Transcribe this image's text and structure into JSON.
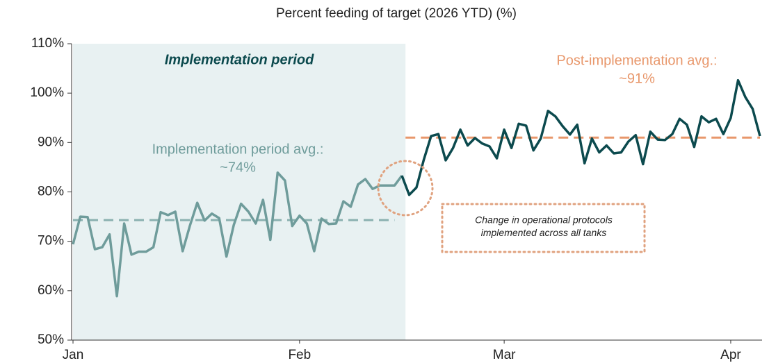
{
  "chart_data": {
    "type": "line",
    "title": "Percent feeding of target (2026 YTD) (%)",
    "x": [
      0,
      1,
      2,
      3,
      4,
      5,
      6,
      7,
      8,
      9,
      10,
      11,
      12,
      13,
      14,
      15,
      16,
      17,
      18,
      19,
      20,
      21,
      22,
      23,
      24,
      25,
      26,
      27,
      28,
      29,
      30,
      31,
      32,
      33,
      34,
      35,
      36,
      37,
      38,
      39,
      40,
      41,
      42,
      43,
      44,
      45,
      46,
      47,
      48,
      49,
      50,
      51,
      52,
      53,
      54,
      55,
      56,
      57,
      58,
      59,
      60,
      61,
      62,
      63,
      64,
      65,
      66,
      67,
      68,
      69,
      70,
      71,
      72,
      73,
      74,
      75,
      76,
      77,
      78,
      79,
      80,
      81,
      82,
      83,
      84,
      85,
      86,
      87,
      88,
      89,
      90,
      91,
      92,
      93,
      94
    ],
    "series": [
      {
        "name": "Implementation period",
        "color": "#6f9c9b",
        "values": [
          69.4,
          75,
          74.9,
          68.4,
          68.8,
          71.4,
          58.9,
          73.6,
          67.3,
          67.9,
          67.9,
          68.8,
          75.9,
          75.3,
          76,
          68,
          73.2,
          77.8,
          74.2,
          75.6,
          74.7,
          66.9,
          73.3,
          77.6,
          76,
          73.6,
          78.4,
          70.3,
          83.9,
          82.3,
          73.1,
          75.2,
          73.6,
          68,
          74.6,
          73.5,
          73.6,
          78.1,
          77,
          81.5,
          82.6,
          80.6,
          81.3,
          81.3,
          81.3,
          83.3,
          null,
          null,
          null,
          null,
          null,
          null,
          null,
          null,
          null,
          null,
          null,
          null,
          null,
          null,
          null,
          null,
          null,
          null,
          null,
          null,
          null,
          null,
          null,
          null,
          null,
          null,
          null,
          null,
          null,
          null,
          null,
          null,
          null,
          null,
          null,
          null,
          null,
          null,
          null,
          null,
          null,
          null,
          null,
          null,
          null,
          null,
          null,
          null,
          null
        ]
      },
      {
        "name": "Post-implementation",
        "color": "#0c4a4e",
        "values": [
          null,
          null,
          null,
          null,
          null,
          null,
          null,
          null,
          null,
          null,
          null,
          null,
          null,
          null,
          null,
          null,
          null,
          null,
          null,
          null,
          null,
          null,
          null,
          null,
          null,
          null,
          null,
          null,
          null,
          null,
          null,
          null,
          null,
          null,
          null,
          null,
          null,
          null,
          null,
          null,
          null,
          null,
          null,
          null,
          null,
          83.3,
          79.4,
          80.9,
          86.5,
          91.3,
          91.7,
          86.4,
          88.9,
          92.6,
          89.4,
          90.9,
          89.8,
          89.2,
          86.8,
          92.6,
          88.9,
          93.8,
          93.4,
          88.4,
          90.8,
          96.4,
          95.3,
          93.3,
          91.6,
          93.6,
          85.8,
          90.8,
          88,
          89.4,
          87.8,
          88,
          90.2,
          91.5,
          85.6,
          92.2,
          90.6,
          90.5,
          91.7,
          94.8,
          93.6,
          89.1,
          95.3,
          94.1,
          94.8,
          91.7,
          95,
          102.6,
          99.2,
          96.8,
          91.3
        ]
      }
    ],
    "reference_lines": [
      {
        "value": 74.3,
        "x": [
          0,
          44
        ],
        "color": "#8ab1b0"
      },
      {
        "value": 91,
        "x": [
          45.5,
          94
        ],
        "color": "#e8976b"
      }
    ],
    "shaded_region": {
      "x": [
        0,
        45.5
      ],
      "color": "#e8f1f2",
      "label": "Implementation period"
    },
    "annotations": [
      {
        "lines": [
          "Implementation period avg.:",
          "~74%"
        ],
        "color": "#6f9c9b"
      },
      {
        "lines": [
          "Post-implementation avg.:",
          "~91%"
        ],
        "color": "#e8976b"
      },
      {
        "lines": [
          "Change in operational protocols",
          "implemented across all tanks"
        ],
        "color": "#222222"
      }
    ],
    "xlim": [
      0,
      94
    ],
    "xticks": [
      {
        "value": 0,
        "label": "Jan"
      },
      {
        "value": 31,
        "label": "Feb"
      },
      {
        "value": 59,
        "label": "Mar"
      },
      {
        "value": 90,
        "label": "Apr"
      }
    ],
    "ylim": [
      50,
      110
    ],
    "yticks": [
      {
        "value": 50,
        "label": "50%"
      },
      {
        "value": 60,
        "label": "60%"
      },
      {
        "value": 70,
        "label": "70%"
      },
      {
        "value": 80,
        "label": "80%"
      },
      {
        "value": 90,
        "label": "90%"
      },
      {
        "value": 100,
        "label": "100%"
      },
      {
        "value": 110,
        "label": "110%"
      }
    ]
  }
}
